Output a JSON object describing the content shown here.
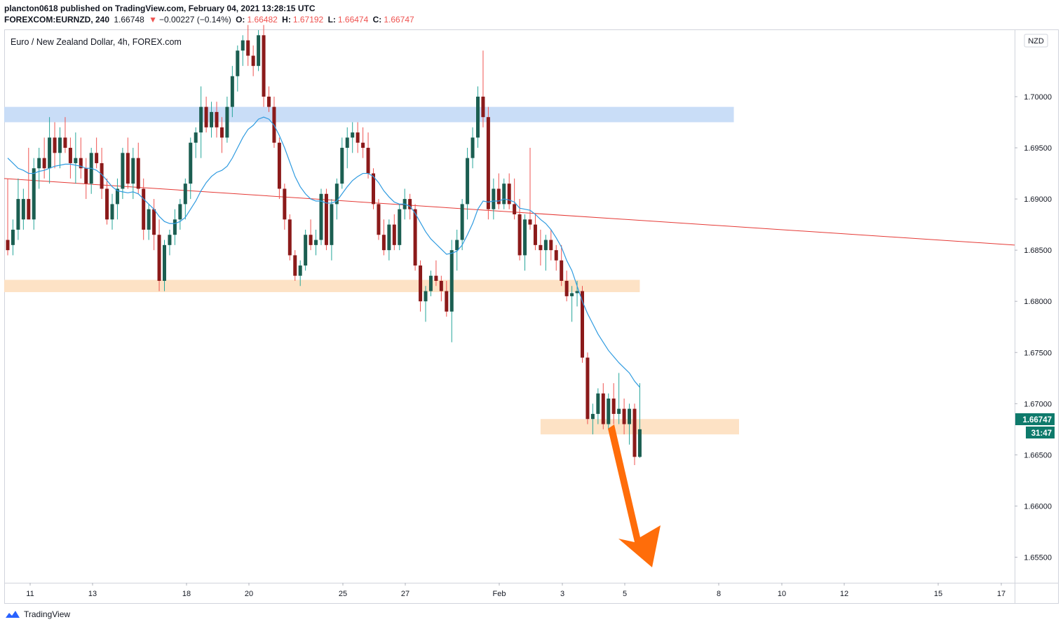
{
  "header": {
    "publisher_line": "plancton0618 published on TradingView.com, February 04, 2021 13:28:15 UTC",
    "symbol": "FOREXCOM:EURNZD, 240",
    "last": "1.66748",
    "change": "−0.00227 (−0.14%)",
    "o_label": "O:",
    "o_value": "1.66482",
    "h_label": "H:",
    "h_value": "1.67192",
    "l_label": "L:",
    "l_value": "1.66474",
    "c_label": "C:",
    "c_value": "1.66747"
  },
  "chart_title": "Euro / New Zealand Dollar, 4h, FOREX.com",
  "currency_badge": "NZD",
  "price_tag": "1.66747",
  "countdown_tag": "31:47",
  "footer_brand": "TradingView",
  "colors": {
    "up": "#26a69a",
    "down": "#ef5350",
    "up_body": "#1b5e51",
    "down_body": "#8b1a1a",
    "ema": "#2f9be0",
    "trendline": "#e53935",
    "resistance_zone": "#c6dbf7",
    "support_zone": "#fde0c2",
    "arrow": "#ff6d0a",
    "tag": "#0e7a6b"
  },
  "chart_data": {
    "type": "candlestick",
    "title": "Euro / New Zealand Dollar, 4h, FOREX.com",
    "y_axis_ticks": [
      "1.70000",
      "1.69500",
      "1.69000",
      "1.68500",
      "1.68000",
      "1.67500",
      "1.67000",
      "1.66500",
      "1.66000",
      "1.65500"
    ],
    "ylim": [
      1.6525,
      1.7065
    ],
    "x_axis_ticks": [
      "11",
      "13",
      "18",
      "20",
      "25",
      "27",
      "Feb",
      "3",
      "5",
      "8",
      "10",
      "12",
      "15",
      "17"
    ],
    "grid": false,
    "candles": [
      [
        1.686,
        1.692,
        1.6845,
        1.685
      ],
      [
        1.6855,
        1.688,
        1.6845,
        1.687
      ],
      [
        1.687,
        1.692,
        1.686,
        1.69
      ],
      [
        1.688,
        1.691,
        1.687,
        1.69
      ],
      [
        1.69,
        1.695,
        1.688,
        1.688
      ],
      [
        1.688,
        1.694,
        1.687,
        1.693
      ],
      [
        1.693,
        1.695,
        1.691,
        1.694
      ],
      [
        1.694,
        1.696,
        1.692,
        1.693
      ],
      [
        1.693,
        1.698,
        1.6915,
        1.696
      ],
      [
        1.696,
        1.6975,
        1.693,
        1.6945
      ],
      [
        1.6945,
        1.697,
        1.693,
        1.696
      ],
      [
        1.696,
        1.698,
        1.6945,
        1.695
      ],
      [
        1.695,
        1.696,
        1.692,
        1.6935
      ],
      [
        1.6935,
        1.6965,
        1.6915,
        1.694
      ],
      [
        1.694,
        1.696,
        1.692,
        1.693
      ],
      [
        1.693,
        1.694,
        1.69,
        1.6915
      ],
      [
        1.6915,
        1.695,
        1.6905,
        1.6945
      ],
      [
        1.6945,
        1.696,
        1.693,
        1.6935
      ],
      [
        1.6935,
        1.695,
        1.69,
        1.691
      ],
      [
        1.691,
        1.692,
        1.6875,
        1.688
      ],
      [
        1.688,
        1.6905,
        1.687,
        1.6895
      ],
      [
        1.6895,
        1.692,
        1.688,
        1.691
      ],
      [
        1.691,
        1.695,
        1.69,
        1.6945
      ],
      [
        1.6945,
        1.696,
        1.691,
        1.6915
      ],
      [
        1.6915,
        1.695,
        1.69,
        1.694
      ],
      [
        1.694,
        1.6955,
        1.6905,
        1.691
      ],
      [
        1.691,
        1.692,
        1.686,
        1.687
      ],
      [
        1.687,
        1.6895,
        1.686,
        1.689
      ],
      [
        1.689,
        1.69,
        1.685,
        1.6865
      ],
      [
        1.6865,
        1.688,
        1.681,
        1.682
      ],
      [
        1.682,
        1.686,
        1.681,
        1.6855
      ],
      [
        1.6855,
        1.687,
        1.6845,
        1.6865
      ],
      [
        1.6865,
        1.689,
        1.6855,
        1.688
      ],
      [
        1.688,
        1.69,
        1.687,
        1.6895
      ],
      [
        1.6895,
        1.692,
        1.688,
        1.6915
      ],
      [
        1.6915,
        1.696,
        1.69,
        1.6955
      ],
      [
        1.6955,
        1.697,
        1.694,
        1.6965
      ],
      [
        1.6965,
        1.701,
        1.694,
        1.699
      ],
      [
        1.699,
        1.7,
        1.6965,
        1.697
      ],
      [
        1.697,
        1.6995,
        1.696,
        1.6985
      ],
      [
        1.6985,
        1.6995,
        1.696,
        1.697
      ],
      [
        1.697,
        1.698,
        1.6945,
        1.696
      ],
      [
        1.696,
        1.7,
        1.6955,
        1.699
      ],
      [
        1.699,
        1.703,
        1.698,
        1.702
      ],
      [
        1.702,
        1.705,
        1.7005,
        1.7045
      ],
      [
        1.7045,
        1.706,
        1.703,
        1.7055
      ],
      [
        1.7055,
        1.707,
        1.703,
        1.704
      ],
      [
        1.704,
        1.705,
        1.702,
        1.703
      ],
      [
        1.703,
        1.7065,
        1.7025,
        1.706
      ],
      [
        1.706,
        1.707,
        1.699,
        1.7
      ],
      [
        1.7,
        1.701,
        1.6985,
        1.699
      ],
      [
        1.699,
        1.7,
        1.695,
        1.6955
      ],
      [
        1.6955,
        1.696,
        1.69,
        1.691
      ],
      [
        1.691,
        1.6915,
        1.687,
        1.688
      ],
      [
        1.688,
        1.6885,
        1.684,
        1.6845
      ],
      [
        1.6845,
        1.685,
        1.682,
        1.6825
      ],
      [
        1.6825,
        1.684,
        1.6815,
        1.6835
      ],
      [
        1.6835,
        1.687,
        1.683,
        1.6865
      ],
      [
        1.6865,
        1.688,
        1.685,
        1.6855
      ],
      [
        1.6855,
        1.687,
        1.6845,
        1.686
      ],
      [
        1.686,
        1.691,
        1.6855,
        1.6905
      ],
      [
        1.6905,
        1.691,
        1.685,
        1.6855
      ],
      [
        1.6855,
        1.69,
        1.684,
        1.6895
      ],
      [
        1.6895,
        1.692,
        1.688,
        1.6915
      ],
      [
        1.6915,
        1.696,
        1.691,
        1.695
      ],
      [
        1.695,
        1.697,
        1.693,
        1.696
      ],
      [
        1.696,
        1.6975,
        1.6945,
        1.6965
      ],
      [
        1.6965,
        1.6975,
        1.6945,
        1.6955
      ],
      [
        1.6955,
        1.697,
        1.694,
        1.695
      ],
      [
        1.695,
        1.6965,
        1.692,
        1.6925
      ],
      [
        1.6925,
        1.693,
        1.689,
        1.6895
      ],
      [
        1.6895,
        1.69,
        1.686,
        1.6865
      ],
      [
        1.6865,
        1.688,
        1.6845,
        1.685
      ],
      [
        1.685,
        1.688,
        1.684,
        1.6875
      ],
      [
        1.6875,
        1.6885,
        1.685,
        1.6855
      ],
      [
        1.6855,
        1.6895,
        1.685,
        1.689
      ],
      [
        1.689,
        1.691,
        1.688,
        1.69
      ],
      [
        1.69,
        1.6905,
        1.688,
        1.689
      ],
      [
        1.689,
        1.6895,
        1.683,
        1.6835
      ],
      [
        1.6835,
        1.684,
        1.679,
        1.68
      ],
      [
        1.68,
        1.6815,
        1.678,
        1.681
      ],
      [
        1.681,
        1.683,
        1.6805,
        1.6825
      ],
      [
        1.6825,
        1.684,
        1.6815,
        1.682
      ],
      [
        1.682,
        1.6825,
        1.68,
        1.681
      ],
      [
        1.681,
        1.682,
        1.6785,
        1.679
      ],
      [
        1.679,
        1.686,
        1.676,
        1.685
      ],
      [
        1.685,
        1.687,
        1.683,
        1.686
      ],
      [
        1.686,
        1.69,
        1.685,
        1.6895
      ],
      [
        1.6895,
        1.695,
        1.688,
        1.694
      ],
      [
        1.694,
        1.697,
        1.693,
        1.696
      ],
      [
        1.696,
        1.701,
        1.695,
        1.7
      ],
      [
        1.7,
        1.7045,
        1.697,
        1.698
      ],
      [
        1.698,
        1.699,
        1.688,
        1.689
      ],
      [
        1.689,
        1.692,
        1.688,
        1.691
      ],
      [
        1.691,
        1.6925,
        1.689,
        1.6895
      ],
      [
        1.6895,
        1.692,
        1.689,
        1.6915
      ],
      [
        1.6915,
        1.6925,
        1.689,
        1.6895
      ],
      [
        1.6895,
        1.692,
        1.688,
        1.6885
      ],
      [
        1.6885,
        1.69,
        1.684,
        1.6845
      ],
      [
        1.6845,
        1.6885,
        1.683,
        1.688
      ],
      [
        1.688,
        1.695,
        1.687,
        1.6875
      ],
      [
        1.6875,
        1.6885,
        1.685,
        1.6855
      ],
      [
        1.6855,
        1.687,
        1.6835,
        1.685
      ],
      [
        1.685,
        1.6865,
        1.683,
        1.686
      ],
      [
        1.686,
        1.687,
        1.684,
        1.685
      ],
      [
        1.685,
        1.6855,
        1.683,
        1.684
      ],
      [
        1.684,
        1.6855,
        1.6815,
        1.682
      ],
      [
        1.682,
        1.683,
        1.68,
        1.6805
      ],
      [
        1.6805,
        1.6815,
        1.678,
        1.6808
      ],
      [
        1.6808,
        1.682,
        1.6795,
        1.681
      ],
      [
        1.681,
        1.6815,
        1.674,
        1.6745
      ],
      [
        1.6745,
        1.675,
        1.668,
        1.6685
      ],
      [
        1.6685,
        1.67,
        1.667,
        1.669
      ],
      [
        1.669,
        1.6715,
        1.668,
        1.671
      ],
      [
        1.671,
        1.672,
        1.6675,
        1.668
      ],
      [
        1.668,
        1.671,
        1.6675,
        1.6705
      ],
      [
        1.6705,
        1.672,
        1.668,
        1.669
      ],
      [
        1.669,
        1.673,
        1.668,
        1.6695
      ],
      [
        1.6695,
        1.6705,
        1.667,
        1.668
      ],
      [
        1.668,
        1.67,
        1.666,
        1.6695
      ],
      [
        1.6695,
        1.67,
        1.664,
        1.6648
      ],
      [
        1.6648,
        1.672,
        1.6647,
        1.6675
      ]
    ],
    "ema": [
      1.694,
      1.6935,
      1.693,
      1.6928,
      1.6925,
      1.6925,
      1.6927,
      1.6928,
      1.693,
      1.6932,
      1.6933,
      1.6934,
      1.6934,
      1.6933,
      1.6932,
      1.693,
      1.693,
      1.6928,
      1.6924,
      1.6918,
      1.6912,
      1.6908,
      1.6907,
      1.6906,
      1.6907,
      1.6905,
      1.69,
      1.6895,
      1.689,
      1.6883,
      1.6878,
      1.6876,
      1.6876,
      1.6878,
      1.6882,
      1.689,
      1.6898,
      1.6908,
      1.6916,
      1.6922,
      1.6926,
      1.6928,
      1.6932,
      1.694,
      1.695,
      1.696,
      1.6968,
      1.6972,
      1.6978,
      1.698,
      1.6978,
      1.6972,
      1.6962,
      1.695,
      1.6936,
      1.6922,
      1.6912,
      1.6905,
      1.69,
      1.6898,
      1.6898,
      1.6896,
      1.6896,
      1.6898,
      1.6905,
      1.6912,
      1.6918,
      1.6922,
      1.6925,
      1.6925,
      1.6922,
      1.6916,
      1.6908,
      1.6902,
      1.6897,
      1.6895,
      1.6895,
      1.6893,
      1.6886,
      1.6877,
      1.6868,
      1.6861,
      1.6856,
      1.6851,
      1.6846,
      1.6847,
      1.6849,
      1.6855,
      1.6865,
      1.6876,
      1.689,
      1.6898,
      1.6897,
      1.6898,
      1.6898,
      1.69,
      1.6899,
      1.6897,
      1.6891,
      1.689,
      1.6889,
      1.6885,
      1.688,
      1.6876,
      1.687,
      1.6862,
      1.6853,
      1.684,
      1.683,
      1.6815,
      1.68,
      1.6788,
      1.6778,
      1.6768,
      1.676,
      1.6752,
      1.6746,
      1.674,
      1.6735,
      1.673,
      1.6722,
      1.6716
    ],
    "trendline": {
      "from": [
        0,
        1.692
      ],
      "to": [
        160,
        1.6855
      ]
    },
    "zones": [
      {
        "name": "resistance",
        "from_candle": -1,
        "to_candle": 139,
        "top": 1.699,
        "bottom": 1.6975
      },
      {
        "name": "support-1",
        "from_candle": -1,
        "to_candle": 121,
        "top": 1.6821,
        "bottom": 1.6809
      },
      {
        "name": "support-2",
        "from_candle": 102,
        "to_candle": 140,
        "top": 1.6685,
        "bottom": 1.667
      }
    ],
    "projection": "down"
  }
}
